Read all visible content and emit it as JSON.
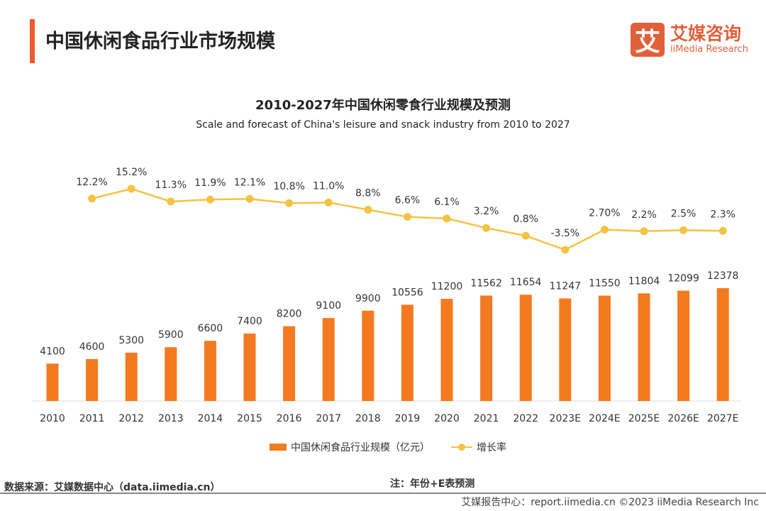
{
  "page_title": "中国休闲食品行业市场规模",
  "logo": {
    "mark": "艾",
    "cn": "艾媒咨询",
    "en": "iiMedia Research"
  },
  "colors": {
    "bar": "#f47a20",
    "line": "#f5c342",
    "accent": "#ef5b2b"
  },
  "chart_data": {
    "type": "bar+line",
    "title": "2010-2027年中国休闲零食行业规模及预测",
    "subtitle": "Scale and forecast of China's leisure and snack industry from 2010 to 2027",
    "categories": [
      "2010",
      "2011",
      "2012",
      "2013",
      "2014",
      "2015",
      "2016",
      "2017",
      "2018",
      "2019",
      "2020",
      "2021",
      "2022",
      "2023E",
      "2024E",
      "2025E",
      "2026E",
      "2027E"
    ],
    "series": [
      {
        "name": "中国休闲食品行业规模（亿元）",
        "type": "bar",
        "values": [
          4100,
          4600,
          5300,
          5900,
          6600,
          7400,
          8200,
          9100,
          9900,
          10556,
          11200,
          11562,
          11654,
          11247,
          11550,
          11804,
          12099,
          12378
        ],
        "labels": [
          "4100",
          "4600",
          "5300",
          "5900",
          "6600",
          "7400",
          "8200",
          "9100",
          "9900",
          "10556",
          "11200",
          "11562",
          "11654",
          "11247",
          "11550",
          "11804",
          "12099",
          "12378"
        ]
      },
      {
        "name": "增长率",
        "type": "line",
        "values": [
          null,
          12.2,
          15.2,
          11.3,
          11.9,
          12.1,
          10.8,
          11.0,
          8.8,
          6.6,
          6.1,
          3.2,
          0.8,
          -3.5,
          2.7,
          2.2,
          2.5,
          2.3
        ],
        "labels": [
          null,
          "12.2%",
          "15.2%",
          "11.3%",
          "11.9%",
          "12.1%",
          "10.8%",
          "11.0%",
          "8.8%",
          "6.6%",
          "6.1%",
          "3.2%",
          "0.8%",
          "-3.5%",
          "2.70%",
          "2.2%",
          "2.5%",
          "2.3%"
        ]
      }
    ],
    "legend": "bottom",
    "grid": false
  },
  "legend": {
    "bar": "中国休闲食品行业规模（亿元）",
    "line": "增长率"
  },
  "source": "数据来源：艾媒数据中心（data.iimedia.cn）",
  "note": "注：年份+E表预测",
  "footer": "艾媒报告中心：report.iimedia.cn   ©2023  iiMedia Research  Inc"
}
